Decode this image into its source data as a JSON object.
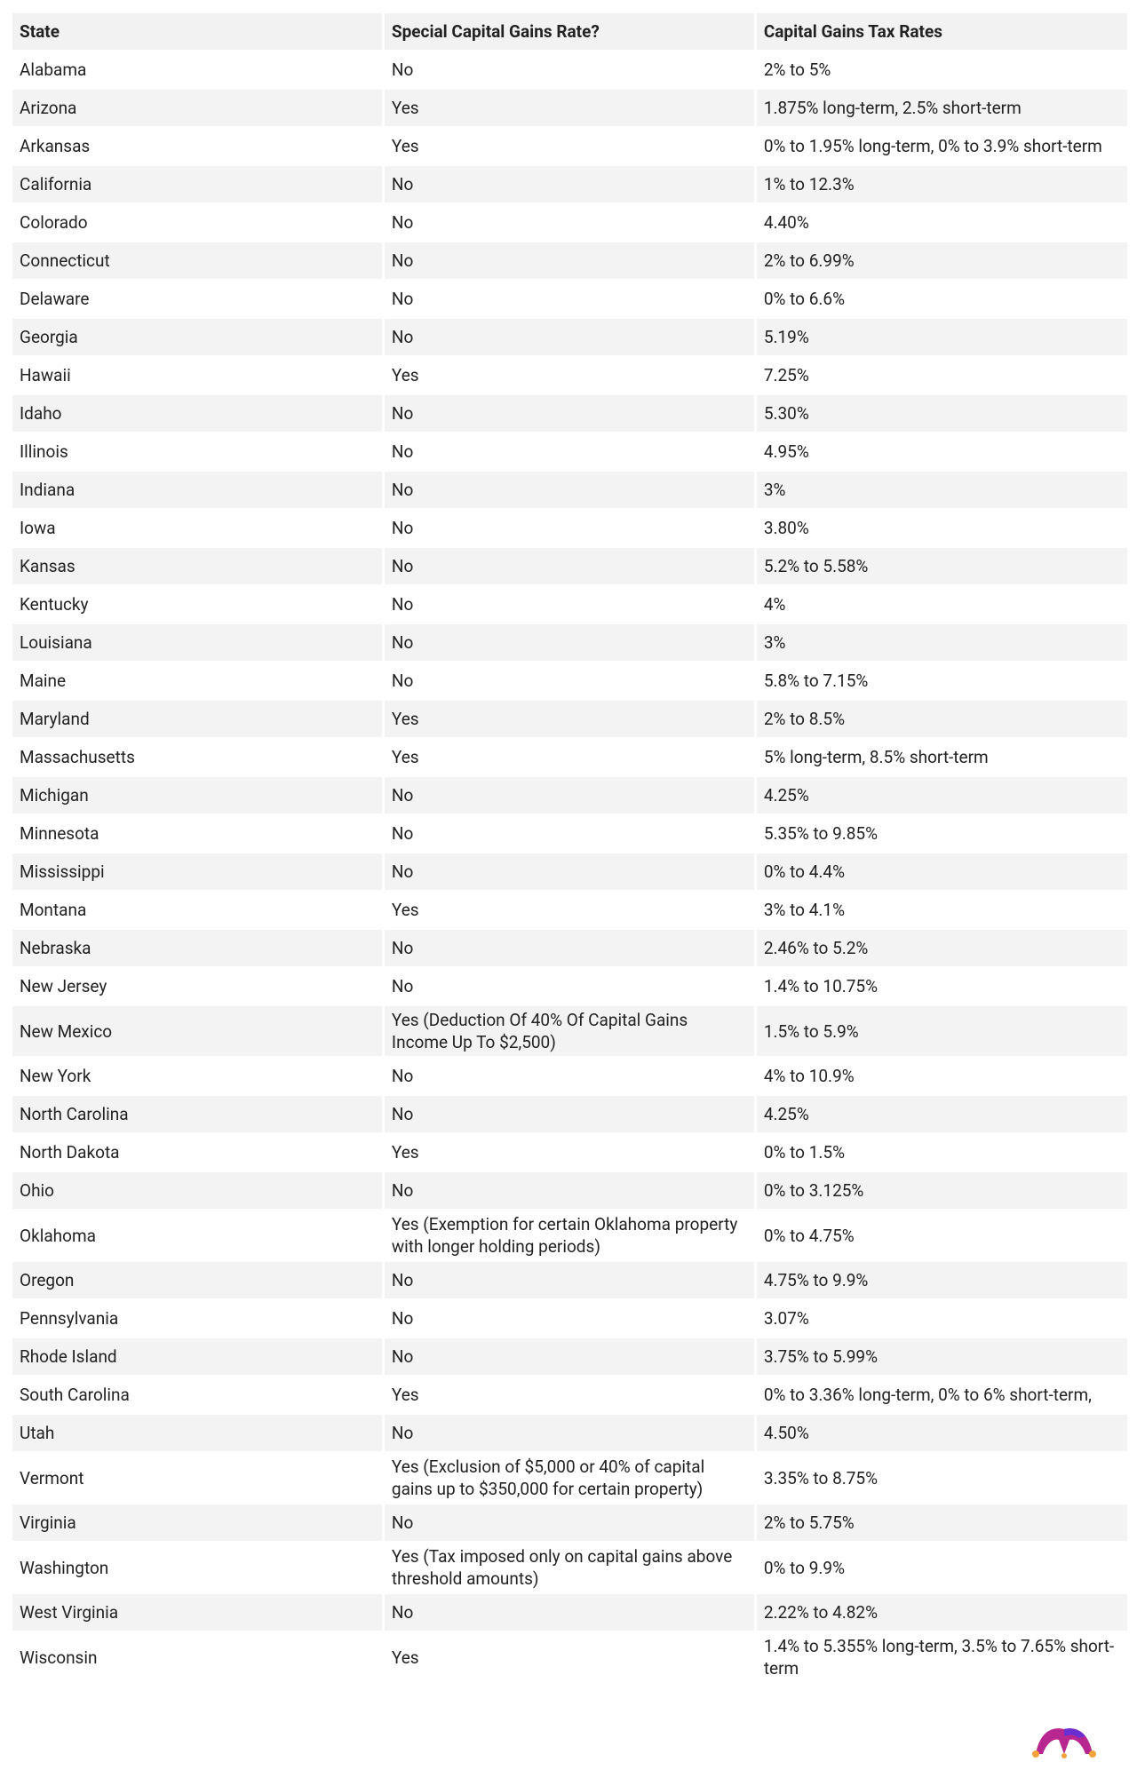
{
  "table": {
    "header": [
      "State",
      "Special Capital Gains Rate?",
      "Capital Gains Tax Rates"
    ],
    "rows": [
      [
        "Alabama",
        "No",
        "2% to 5%"
      ],
      [
        "Arizona",
        "Yes",
        "1.875% long-term, 2.5% short-term"
      ],
      [
        "Arkansas",
        "Yes",
        "0% to 1.95% long-term, 0% to 3.9% short-term"
      ],
      [
        "California",
        "No",
        "1% to 12.3%"
      ],
      [
        "Colorado",
        "No",
        "4.40%"
      ],
      [
        "Connecticut",
        "No",
        "2% to 6.99%"
      ],
      [
        "Delaware",
        "No",
        "0% to 6.6%"
      ],
      [
        "Georgia",
        "No",
        "5.19%"
      ],
      [
        "Hawaii",
        "Yes",
        "7.25%"
      ],
      [
        "Idaho",
        "No",
        "5.30%"
      ],
      [
        "Illinois",
        "No",
        "4.95%"
      ],
      [
        "Indiana",
        "No",
        "3%"
      ],
      [
        "Iowa",
        "No",
        "3.80%"
      ],
      [
        "Kansas",
        "No",
        "5.2% to 5.58%"
      ],
      [
        "Kentucky",
        "No",
        "4%"
      ],
      [
        "Louisiana",
        "No",
        "3%"
      ],
      [
        "Maine",
        "No",
        "5.8% to 7.15%"
      ],
      [
        "Maryland",
        "Yes",
        "2% to 8.5%"
      ],
      [
        "Massachusetts",
        "Yes",
        "5% long-term, 8.5% short-term"
      ],
      [
        "Michigan",
        "No",
        "4.25%"
      ],
      [
        "Minnesota",
        "No",
        "5.35% to 9.85%"
      ],
      [
        "Mississippi",
        "No",
        "0% to 4.4%"
      ],
      [
        "Montana",
        "Yes",
        "3% to 4.1%"
      ],
      [
        "Nebraska",
        "No",
        "2.46% to 5.2%"
      ],
      [
        "New Jersey",
        "No",
        "1.4% to 10.75%"
      ],
      [
        "New Mexico",
        "Yes (Deduction Of 40% Of Capital Gains Income Up To $2,500)",
        "1.5% to 5.9%"
      ],
      [
        "New York",
        "No",
        "4% to 10.9%"
      ],
      [
        "North Carolina",
        "No",
        "4.25%"
      ],
      [
        "North Dakota",
        "Yes",
        "0% to 1.5%"
      ],
      [
        "Ohio",
        "No",
        "0% to 3.125%"
      ],
      [
        "Oklahoma",
        "Yes (Exemption for certain Oklahoma property with longer holding periods)",
        "0% to 4.75%"
      ],
      [
        "Oregon",
        "No",
        "4.75% to 9.9%"
      ],
      [
        "Pennsylvania",
        "No",
        "3.07%"
      ],
      [
        "Rhode Island",
        "No",
        "3.75% to 5.99%"
      ],
      [
        "South Carolina",
        "Yes",
        "0% to 3.36% long-term, 0% to 6% short-term,"
      ],
      [
        "Utah",
        "No",
        "4.50%"
      ],
      [
        "Vermont",
        "Yes (Exclusion of $5,000 or 40% of capital gains up to $350,000 for certain property)",
        "3.35% to 8.75%"
      ],
      [
        "Virginia",
        "No",
        "2% to 5.75%"
      ],
      [
        "Washington",
        "Yes (Tax imposed only on capital gains above threshold amounts)",
        "0% to 9.9%"
      ],
      [
        "West Virginia",
        "No",
        "2.22% to 4.82%"
      ],
      [
        "Wisconsin",
        "Yes",
        "1.4% to 5.355% long-term, 3.5% to 7.65% short-term"
      ]
    ]
  }
}
